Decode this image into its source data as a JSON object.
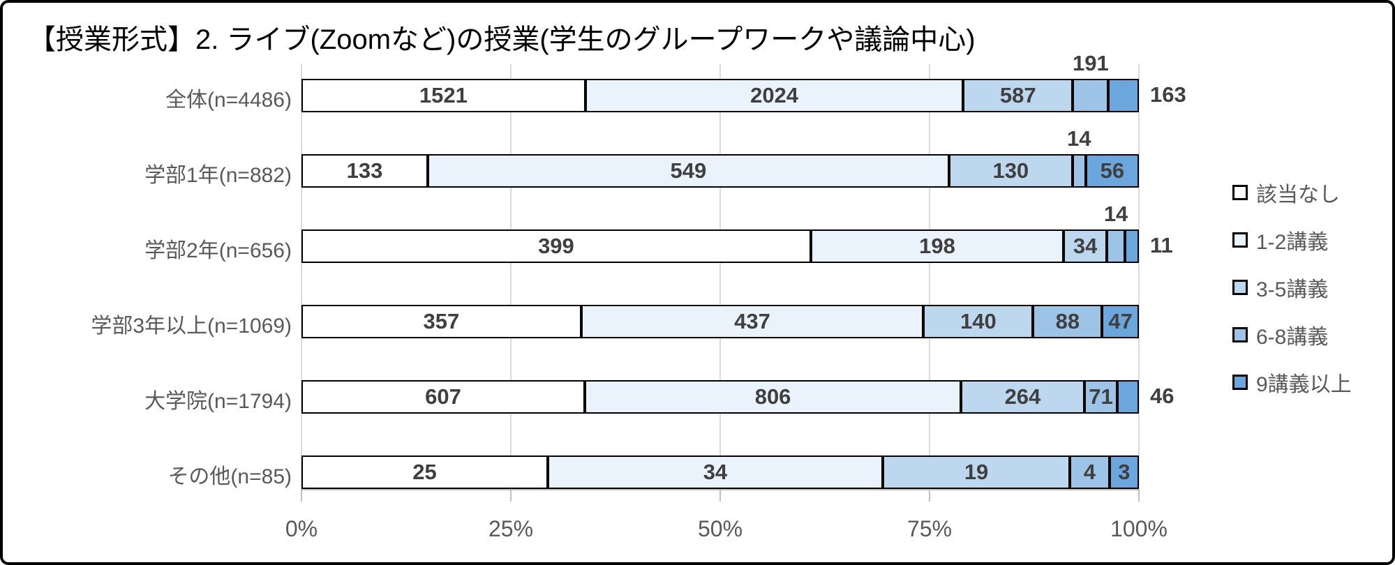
{
  "chart_data": {
    "type": "bar",
    "subtype": "horizontal-stacked-100percent",
    "title": "【授業形式】2. ライブ(Zoomなど)の授業(学生のグループワークや議論中心)",
    "legend": [
      "該当なし",
      "1-2講義",
      "3-5講義",
      "6-8講義",
      "9講義以上"
    ],
    "legend_position": "right",
    "colors": [
      "#FFFFFF",
      "#EAF3FB",
      "#BDD7EE",
      "#9DC3E6",
      "#6BA7DC"
    ],
    "rows": [
      {
        "label": "全体(n=4486)",
        "n": 4486,
        "values": [
          1521,
          2024,
          587,
          191,
          163
        ],
        "label_pos": [
          "in",
          "in",
          "in",
          "above",
          "out"
        ]
      },
      {
        "label": "学部1年(n=882)",
        "n": 882,
        "values": [
          133,
          549,
          130,
          14,
          56
        ],
        "label_pos": [
          "in",
          "in",
          "in",
          "above",
          "in"
        ]
      },
      {
        "label": "学部2年(n=656)",
        "n": 656,
        "values": [
          399,
          198,
          34,
          14,
          11
        ],
        "label_pos": [
          "in",
          "in",
          "in",
          "above",
          "out"
        ]
      },
      {
        "label": "学部3年以上(n=1069)",
        "n": 1069,
        "values": [
          357,
          437,
          140,
          88,
          47
        ],
        "label_pos": [
          "in",
          "in",
          "in",
          "in",
          "in"
        ]
      },
      {
        "label": "大学院(n=1794)",
        "n": 1794,
        "values": [
          607,
          806,
          264,
          71,
          46
        ],
        "label_pos": [
          "in",
          "in",
          "in",
          "in",
          "out"
        ]
      },
      {
        "label": "その他(n=85)",
        "n": 85,
        "values": [
          25,
          34,
          19,
          4,
          3
        ],
        "label_pos": [
          "in",
          "in",
          "in",
          "in",
          "in"
        ]
      }
    ],
    "x_axis": {
      "ticks": [
        "0%",
        "25%",
        "50%",
        "75%",
        "100%"
      ],
      "range": [
        0,
        100
      ],
      "grid": true
    },
    "styles": {
      "grid_color": "#D9D9D9",
      "axis_color": "#BFBFBF",
      "bar_border_color": "#000000",
      "value_label_color": "#3F3F3F",
      "axis_label_color": "#595959",
      "category_label_color": "#595959",
      "legend_label_color": "#595959",
      "frame_border_color": "#000000"
    }
  }
}
